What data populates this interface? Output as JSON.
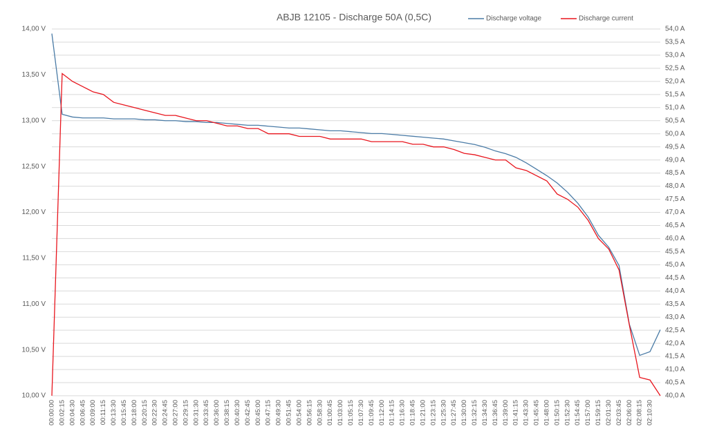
{
  "chart_data": {
    "type": "line",
    "title": "ABJB 12105 - Discharge 50A (0,5C)",
    "categories": [
      "00:00:00",
      "00:02:15",
      "00:04:30",
      "00:06:45",
      "00:09:00",
      "00:11:15",
      "00:13:30",
      "00:15:45",
      "00:18:00",
      "00:20:15",
      "00:22:30",
      "00:24:45",
      "00:27:00",
      "00:29:15",
      "00:31:30",
      "00:33:45",
      "00:36:00",
      "00:38:15",
      "00:40:30",
      "00:42:45",
      "00:45:00",
      "00:47:15",
      "00:49:30",
      "00:51:45",
      "00:54:00",
      "00:56:15",
      "00:58:30",
      "01:00:45",
      "01:03:00",
      "01:05:15",
      "01:07:30",
      "01:09:45",
      "01:12:00",
      "01:14:15",
      "01:16:30",
      "01:18:45",
      "01:21:00",
      "01:23:15",
      "01:25:30",
      "01:27:45",
      "01:30:00",
      "01:32:15",
      "01:34:30",
      "01:36:45",
      "01:39:00",
      "01:41:15",
      "01:43:30",
      "01:45:45",
      "01:48:00",
      "01:50:15",
      "01:52:30",
      "01:54:45",
      "01:57:00",
      "01:59:15",
      "02:01:30",
      "02:03:45",
      "02:06:00",
      "02:08:15",
      "02:10:30",
      null
    ],
    "series": [
      {
        "name": "Discharge voltage",
        "color": "#4a7ba6",
        "values": [
          13.95,
          13.07,
          13.04,
          13.03,
          13.03,
          13.03,
          13.02,
          13.02,
          13.02,
          13.01,
          13.01,
          13.0,
          13.0,
          12.99,
          12.99,
          12.98,
          12.98,
          12.97,
          12.96,
          12.95,
          12.95,
          12.94,
          12.93,
          12.92,
          12.92,
          12.91,
          12.9,
          12.89,
          12.89,
          12.88,
          12.87,
          12.86,
          12.86,
          12.85,
          12.84,
          12.83,
          12.82,
          12.81,
          12.8,
          12.78,
          12.76,
          12.74,
          12.71,
          12.67,
          12.64,
          12.6,
          12.54,
          12.47,
          12.4,
          12.32,
          12.22,
          12.1,
          11.95,
          11.75,
          11.62,
          11.42,
          10.78,
          10.44,
          10.48,
          10.72
        ]
      },
      {
        "name": "Discharge current",
        "color": "#e8141c",
        "axis": "y2",
        "values": [
          40.0,
          52.3,
          52.0,
          51.8,
          51.6,
          51.5,
          51.2,
          51.1,
          51.0,
          50.9,
          50.8,
          50.7,
          50.7,
          50.6,
          50.5,
          50.5,
          50.4,
          50.3,
          50.3,
          50.2,
          50.2,
          50.0,
          50.0,
          50.0,
          49.9,
          49.9,
          49.9,
          49.8,
          49.8,
          49.8,
          49.8,
          49.7,
          49.7,
          49.7,
          49.7,
          49.6,
          49.6,
          49.5,
          49.5,
          49.4,
          49.25,
          49.2,
          49.1,
          49.0,
          49.0,
          48.7,
          48.6,
          48.4,
          48.2,
          47.7,
          47.5,
          47.2,
          46.7,
          46.0,
          45.6,
          44.8,
          42.7,
          40.7,
          40.6,
          40.0
        ]
      }
    ],
    "ylim": [
      10,
      14
    ],
    "yticks": [
      {
        "value": 10,
        "label": "10,00 V"
      },
      {
        "value": 10.5,
        "label": "10,50 V"
      },
      {
        "value": 11,
        "label": "11,00 V"
      },
      {
        "value": 11.5,
        "label": "11,50 V"
      },
      {
        "value": 12,
        "label": "12,00 V"
      },
      {
        "value": 12.5,
        "label": "12,50 V"
      },
      {
        "value": 13,
        "label": "13,00 V"
      },
      {
        "value": 13.5,
        "label": "13,50 V"
      },
      {
        "value": 14,
        "label": "14,00 V"
      }
    ],
    "y2lim": [
      40,
      54
    ],
    "y2ticks": [
      {
        "value": 40,
        "label": "40,0 A"
      },
      {
        "value": 40.5,
        "label": "40,5 A"
      },
      {
        "value": 41,
        "label": "41,0 A"
      },
      {
        "value": 41.5,
        "label": "41,5 A"
      },
      {
        "value": 42,
        "label": "42,0 A"
      },
      {
        "value": 42.5,
        "label": "42,5 A"
      },
      {
        "value": 43,
        "label": "43,0 A"
      },
      {
        "value": 43.5,
        "label": "43,5 A"
      },
      {
        "value": 44,
        "label": "44,0 A"
      },
      {
        "value": 44.5,
        "label": "44,5 A"
      },
      {
        "value": 45,
        "label": "45,0 A"
      },
      {
        "value": 45.5,
        "label": "45,5 A"
      },
      {
        "value": 46,
        "label": "46,0 A"
      },
      {
        "value": 46.5,
        "label": "46,5 A"
      },
      {
        "value": 47,
        "label": "47,0 A"
      },
      {
        "value": 47.5,
        "label": "47,5 A"
      },
      {
        "value": 48,
        "label": "48,0 A"
      },
      {
        "value": 48.5,
        "label": "48,5 A"
      },
      {
        "value": 49,
        "label": "49,0 A"
      },
      {
        "value": 49.5,
        "label": "49,5 A"
      },
      {
        "value": 50,
        "label": "50,0 A"
      },
      {
        "value": 50.5,
        "label": "50,5 A"
      },
      {
        "value": 51,
        "label": "51,0 A"
      },
      {
        "value": 51.5,
        "label": "51,5 A"
      },
      {
        "value": 52,
        "label": "52,0 A"
      },
      {
        "value": 52.5,
        "label": "52,5 A"
      },
      {
        "value": 53,
        "label": "53,0 A"
      },
      {
        "value": 53.5,
        "label": "53,5 A"
      },
      {
        "value": 54,
        "label": "54,0 A"
      }
    ],
    "grid": true,
    "legend": "top-right"
  }
}
